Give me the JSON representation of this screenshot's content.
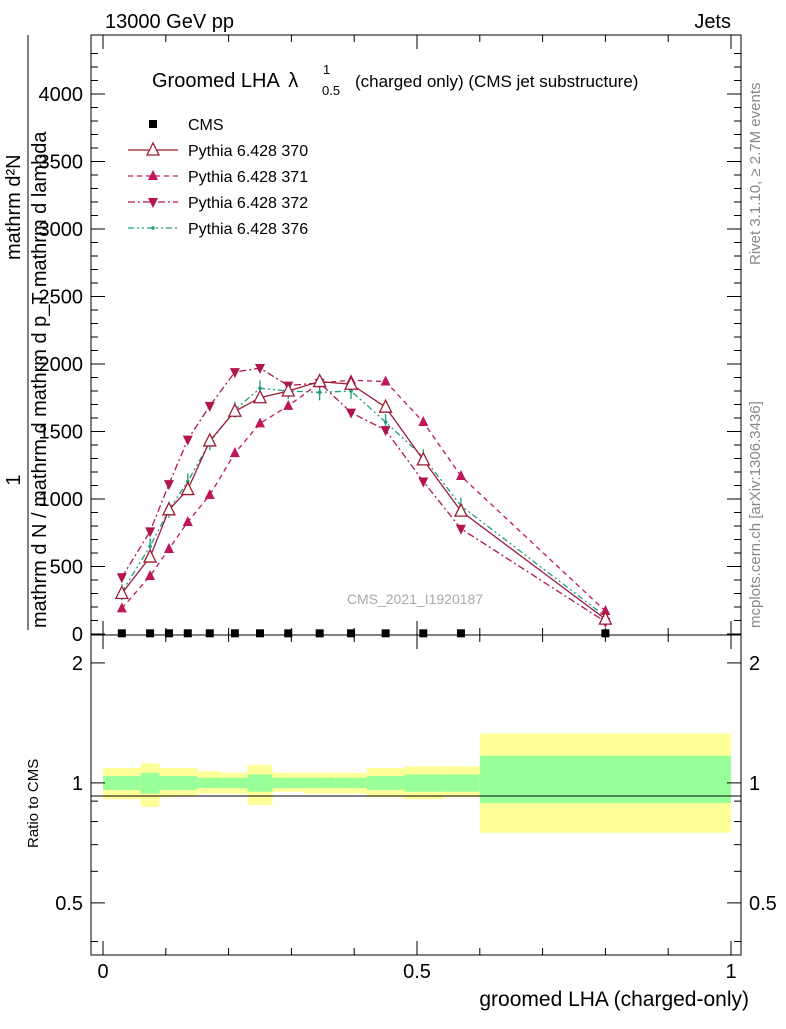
{
  "header": {
    "left": "13000 GeV pp",
    "right": "Jets"
  },
  "side_labels": {
    "rivet": "Rivet 3.1.10, ≥ 2.7M events",
    "mcplots": "mcplots.cern.ch [arXiv:1306.3436]"
  },
  "watermark": "CMS_2021_I1920187",
  "colors": {
    "data": "#000000",
    "p370": "#9e1b33",
    "p371": "#c0165a",
    "p372": "#b0164a",
    "p376": "#1e9e80",
    "band_outer": "#ffff99",
    "band_inner": "#99ff99"
  },
  "chart_data": [
    {
      "type": "line",
      "title_main": "Groomed LHA",
      "title_symbol": "λ",
      "title_sup": "1",
      "title_sub": "0.5",
      "title_rest": "(charged only) (CMS jet substructure)",
      "ylabel_numerator": "1",
      "ylabel_denominator": "mathrm d N / mathrm d mathrm d p_T mathrm d lambda",
      "ylabel_top": "mathrm d²N",
      "xlim": [
        0,
        1
      ],
      "ylim": [
        0,
        4400
      ],
      "yticks": [
        0,
        500,
        1000,
        1500,
        2000,
        2500,
        3000,
        3500,
        4000
      ],
      "ytick_labels": [
        "0",
        "500",
        "1000",
        "1500",
        "2000",
        "2500",
        "3000",
        "3500",
        "4000"
      ],
      "grid": false,
      "legend_position": "top-left",
      "x": [
        0.03,
        0.075,
        0.105,
        0.135,
        0.17,
        0.21,
        0.25,
        0.295,
        0.345,
        0.395,
        0.45,
        0.51,
        0.57,
        0.8
      ],
      "series": [
        {
          "name": "CMS",
          "marker": "square",
          "values": [
            5,
            5,
            5,
            5,
            5,
            5,
            5,
            5,
            5,
            5,
            5,
            5,
            5,
            5
          ]
        },
        {
          "name": "Pythia 6.428 370",
          "marker": "open-triangle-up",
          "line": "solid",
          "values": [
            300,
            570,
            920,
            1070,
            1430,
            1650,
            1750,
            1800,
            1870,
            1850,
            1680,
            1290,
            910,
            110
          ]
        },
        {
          "name": "Pythia 6.428 371",
          "marker": "triangle-up",
          "line": "dashed",
          "values": [
            190,
            430,
            630,
            830,
            1030,
            1340,
            1560,
            1690,
            1860,
            1880,
            1870,
            1570,
            1170,
            170
          ]
        },
        {
          "name": "Pythia 6.428 372",
          "marker": "triangle-down",
          "line": "dashdot",
          "values": [
            420,
            760,
            1110,
            1440,
            1690,
            1940,
            1970,
            1840,
            1860,
            1640,
            1510,
            1130,
            780,
            90
          ]
        },
        {
          "name": "Pythia 6.428 376",
          "marker": "dot",
          "line": "dashdotdot",
          "values": [
            310,
            650,
            920,
            1130,
            1420,
            1660,
            1820,
            1800,
            1790,
            1800,
            1570,
            1310,
            950,
            130
          ]
        }
      ]
    },
    {
      "type": "area",
      "ylabel": "Ratio to CMS",
      "xlabel": "groomed LHA (charged-only)",
      "xlim": [
        0,
        1
      ],
      "ylim": [
        0.37,
        2.35
      ],
      "yticks": [
        0.5,
        1,
        2
      ],
      "ytick_labels": [
        "0.5",
        "1",
        "2"
      ],
      "xticks": [
        0,
        0.5,
        1
      ],
      "xtick_labels": [
        "0",
        "0.5",
        "1"
      ],
      "bins": [
        {
          "x0": 0.0,
          "x1": 0.06,
          "outer": [
            0.91,
            1.09
          ],
          "inner": [
            0.96,
            1.04
          ]
        },
        {
          "x0": 0.06,
          "x1": 0.09,
          "outer": [
            0.87,
            1.12
          ],
          "inner": [
            0.94,
            1.06
          ]
        },
        {
          "x0": 0.09,
          "x1": 0.12,
          "outer": [
            0.92,
            1.09
          ],
          "inner": [
            0.96,
            1.04
          ]
        },
        {
          "x0": 0.12,
          "x1": 0.15,
          "outer": [
            0.93,
            1.09
          ],
          "inner": [
            0.96,
            1.04
          ]
        },
        {
          "x0": 0.15,
          "x1": 0.19,
          "outer": [
            0.94,
            1.07
          ],
          "inner": [
            0.97,
            1.03
          ]
        },
        {
          "x0": 0.19,
          "x1": 0.23,
          "outer": [
            0.94,
            1.06
          ],
          "inner": [
            0.97,
            1.03
          ]
        },
        {
          "x0": 0.23,
          "x1": 0.27,
          "outer": [
            0.88,
            1.11
          ],
          "inner": [
            0.95,
            1.05
          ]
        },
        {
          "x0": 0.27,
          "x1": 0.32,
          "outer": [
            0.95,
            1.06
          ],
          "inner": [
            0.97,
            1.03
          ]
        },
        {
          "x0": 0.32,
          "x1": 0.37,
          "outer": [
            0.94,
            1.06
          ],
          "inner": [
            0.97,
            1.03
          ]
        },
        {
          "x0": 0.37,
          "x1": 0.42,
          "outer": [
            0.94,
            1.06
          ],
          "inner": [
            0.97,
            1.03
          ]
        },
        {
          "x0": 0.42,
          "x1": 0.48,
          "outer": [
            0.92,
            1.09
          ],
          "inner": [
            0.96,
            1.04
          ]
        },
        {
          "x0": 0.48,
          "x1": 0.54,
          "outer": [
            0.91,
            1.1
          ],
          "inner": [
            0.95,
            1.05
          ]
        },
        {
          "x0": 0.54,
          "x1": 0.6,
          "outer": [
            0.92,
            1.1
          ],
          "inner": [
            0.95,
            1.05
          ]
        },
        {
          "x0": 0.6,
          "x1": 1.0,
          "outer": [
            0.75,
            1.33
          ],
          "inner": [
            0.89,
            1.17
          ]
        }
      ]
    }
  ]
}
